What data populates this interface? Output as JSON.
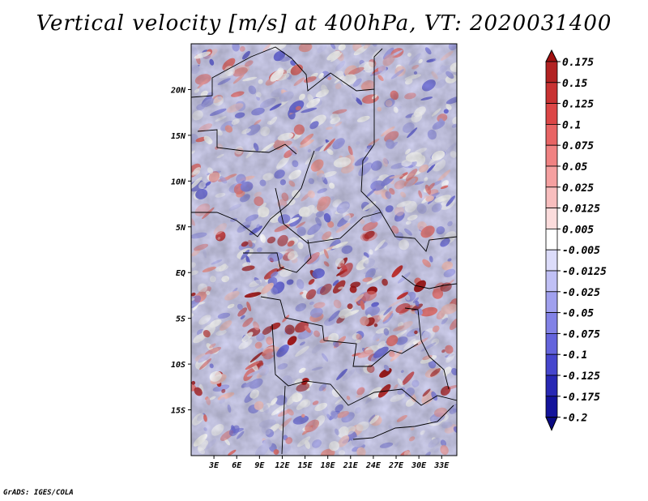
{
  "chart_data": {
    "type": "heatmap",
    "title": "Vertical velocity [m/s] at 400hPa, VT: 2020031400",
    "x_tick_labels": [
      "3E",
      "6E",
      "9E",
      "12E",
      "15E",
      "18E",
      "21E",
      "24E",
      "27E",
      "30E",
      "33E"
    ],
    "x_ticks": [
      3,
      6,
      9,
      12,
      15,
      18,
      21,
      24,
      27,
      30,
      33
    ],
    "xlim": [
      0,
      35
    ],
    "y_tick_labels": [
      "20N",
      "15N",
      "10N",
      "5N",
      "EQ",
      "5S",
      "10S",
      "15S"
    ],
    "y_ticks": [
      20,
      15,
      10,
      5,
      0,
      -5,
      -10,
      -15
    ],
    "ylim": [
      -20,
      25
    ],
    "colorbar": {
      "labels": [
        "0.175",
        "0.15",
        "0.125",
        "0.1",
        "0.075",
        "0.05",
        "0.025",
        "0.0125",
        "0.005",
        "-0.005",
        "-0.0125",
        "-0.025",
        "-0.05",
        "-0.075",
        "-0.1",
        "-0.125",
        "-0.175",
        "-0.2"
      ],
      "colors": [
        "#a01010",
        "#b22222",
        "#c83232",
        "#dc4646",
        "#e86464",
        "#f08282",
        "#f5a0a0",
        "#f8bebe",
        "#fbdcdc",
        "#ffffff",
        "#dcdcfa",
        "#c0c0f5",
        "#a0a0ee",
        "#8282e6",
        "#6464dc",
        "#4646cd",
        "#2828b4",
        "#14149b",
        "#0a0a82"
      ]
    }
  },
  "credit": "GrADS: IGES/COLA"
}
